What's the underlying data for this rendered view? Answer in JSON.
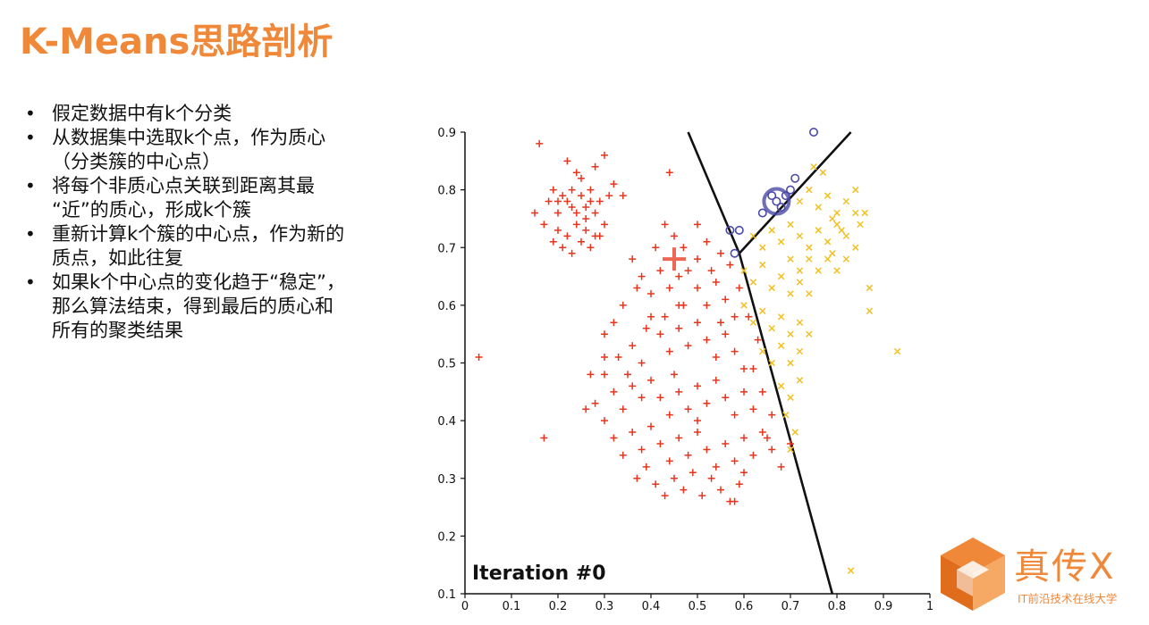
{
  "slide": {
    "title": "K-Means思路剖析",
    "bullets": [
      {
        "text": "假定数据中有k个分类"
      },
      {
        "text": "从数据集中选取k个点，作为质心（分类簇的中心点）"
      },
      {
        "text": "将每个非质心点关联到距离其最“近”的质心，形成k个簇"
      },
      {
        "text": "重新计算k个簇的中心点，作为新的质点，如此往复"
      },
      {
        "text": "如果k个中心点的变化趋于“稳定”，那么算法结束，得到最后的质心和所有的聚类结果"
      }
    ],
    "bullet_lines": [
      [
        "假定数据中有k个分类"
      ],
      [
        "从数据集中选取k个点，作为质心",
        "（分类簇的中心点）"
      ],
      [
        "将每个非质心点关联到距离其最",
        "“近”的质心，形成k个簇"
      ],
      [
        "重新计算k个簇的中心点，作为新的",
        "质点，如此往复"
      ],
      [
        "如果k个中心点的变化趋于“稳定”，",
        "那么算法结束，得到最后的质心和",
        "所有的聚类结果"
      ]
    ]
  },
  "logo": {
    "name": "真传X",
    "tagline": "IT前沿技术在线大学",
    "color": "#f0883a"
  },
  "chart_data": {
    "type": "scatter",
    "title": "",
    "annotation": "Iteration #0",
    "xlim": [
      0,
      1
    ],
    "ylim": [
      0.1,
      0.9
    ],
    "xticks": [
      "0",
      "0.1",
      "0.2",
      "0.3",
      "0.4",
      "0.5",
      "0.6",
      "0.7",
      "0.8",
      "0.9",
      "1"
    ],
    "yticks": [
      "0.1",
      "0.2",
      "0.3",
      "0.4",
      "0.5",
      "0.6",
      "0.7",
      "0.8",
      "0.9"
    ],
    "colors": {
      "red": "#e8341c",
      "yellow": "#f2c023",
      "blue": "#4a4aa8",
      "line": "#111111"
    },
    "boundaries": [
      {
        "x": [
          0.48,
          0.59,
          0.79
        ],
        "y": [
          0.9,
          0.69,
          0.1
        ]
      },
      {
        "x": [
          0.59,
          0.83
        ],
        "y": [
          0.69,
          0.9
        ]
      }
    ],
    "centroids": [
      {
        "cluster": "red",
        "x": 0.45,
        "y": 0.68
      },
      {
        "cluster": "blue",
        "x": 0.67,
        "y": 0.78
      }
    ],
    "clusters": [
      {
        "color": "red",
        "marker": "plus",
        "points": [
          [
            0.16,
            0.88
          ],
          [
            0.03,
            0.51
          ],
          [
            0.17,
            0.37
          ],
          [
            0.44,
            0.83
          ],
          [
            0.18,
            0.78
          ],
          [
            0.19,
            0.8
          ],
          [
            0.2,
            0.76
          ],
          [
            0.21,
            0.79
          ],
          [
            0.22,
            0.78
          ],
          [
            0.23,
            0.8
          ],
          [
            0.24,
            0.76
          ],
          [
            0.25,
            0.79
          ],
          [
            0.26,
            0.77
          ],
          [
            0.27,
            0.8
          ],
          [
            0.28,
            0.76
          ],
          [
            0.29,
            0.78
          ],
          [
            0.2,
            0.73
          ],
          [
            0.22,
            0.72
          ],
          [
            0.24,
            0.74
          ],
          [
            0.26,
            0.73
          ],
          [
            0.28,
            0.72
          ],
          [
            0.3,
            0.74
          ],
          [
            0.19,
            0.71
          ],
          [
            0.21,
            0.7
          ],
          [
            0.23,
            0.69
          ],
          [
            0.25,
            0.71
          ],
          [
            0.27,
            0.7
          ],
          [
            0.29,
            0.72
          ],
          [
            0.17,
            0.74
          ],
          [
            0.15,
            0.76
          ],
          [
            0.31,
            0.79
          ],
          [
            0.32,
            0.81
          ],
          [
            0.28,
            0.84
          ],
          [
            0.24,
            0.83
          ],
          [
            0.3,
            0.86
          ],
          [
            0.34,
            0.79
          ],
          [
            0.22,
            0.85
          ],
          [
            0.26,
            0.75
          ],
          [
            0.23,
            0.77
          ],
          [
            0.2,
            0.78
          ],
          [
            0.25,
            0.82
          ],
          [
            0.27,
            0.78
          ],
          [
            0.36,
            0.68
          ],
          [
            0.38,
            0.65
          ],
          [
            0.4,
            0.62
          ],
          [
            0.42,
            0.66
          ],
          [
            0.44,
            0.63
          ],
          [
            0.46,
            0.6
          ],
          [
            0.48,
            0.66
          ],
          [
            0.5,
            0.63
          ],
          [
            0.52,
            0.6
          ],
          [
            0.54,
            0.64
          ],
          [
            0.56,
            0.61
          ],
          [
            0.58,
            0.58
          ],
          [
            0.4,
            0.58
          ],
          [
            0.42,
            0.55
          ],
          [
            0.44,
            0.52
          ],
          [
            0.46,
            0.56
          ],
          [
            0.48,
            0.53
          ],
          [
            0.5,
            0.57
          ],
          [
            0.52,
            0.54
          ],
          [
            0.54,
            0.51
          ],
          [
            0.56,
            0.55
          ],
          [
            0.58,
            0.52
          ],
          [
            0.6,
            0.49
          ],
          [
            0.34,
            0.6
          ],
          [
            0.32,
            0.57
          ],
          [
            0.3,
            0.55
          ],
          [
            0.36,
            0.53
          ],
          [
            0.38,
            0.5
          ],
          [
            0.4,
            0.47
          ],
          [
            0.42,
            0.44
          ],
          [
            0.44,
            0.41
          ],
          [
            0.46,
            0.45
          ],
          [
            0.48,
            0.42
          ],
          [
            0.5,
            0.46
          ],
          [
            0.52,
            0.43
          ],
          [
            0.54,
            0.47
          ],
          [
            0.56,
            0.44
          ],
          [
            0.58,
            0.41
          ],
          [
            0.6,
            0.45
          ],
          [
            0.62,
            0.42
          ],
          [
            0.3,
            0.48
          ],
          [
            0.32,
            0.45
          ],
          [
            0.34,
            0.42
          ],
          [
            0.36,
            0.46
          ],
          [
            0.28,
            0.43
          ],
          [
            0.3,
            0.4
          ],
          [
            0.32,
            0.37
          ],
          [
            0.34,
            0.34
          ],
          [
            0.36,
            0.38
          ],
          [
            0.38,
            0.35
          ],
          [
            0.4,
            0.39
          ],
          [
            0.42,
            0.36
          ],
          [
            0.44,
            0.33
          ],
          [
            0.46,
            0.37
          ],
          [
            0.48,
            0.34
          ],
          [
            0.5,
            0.38
          ],
          [
            0.52,
            0.35
          ],
          [
            0.54,
            0.32
          ],
          [
            0.56,
            0.36
          ],
          [
            0.58,
            0.33
          ],
          [
            0.6,
            0.37
          ],
          [
            0.62,
            0.34
          ],
          [
            0.64,
            0.38
          ],
          [
            0.66,
            0.35
          ],
          [
            0.68,
            0.32
          ],
          [
            0.7,
            0.36
          ],
          [
            0.45,
            0.3
          ],
          [
            0.47,
            0.28
          ],
          [
            0.49,
            0.31
          ],
          [
            0.51,
            0.27
          ],
          [
            0.53,
            0.3
          ],
          [
            0.55,
            0.28
          ],
          [
            0.57,
            0.26
          ],
          [
            0.59,
            0.29
          ],
          [
            0.43,
            0.27
          ],
          [
            0.41,
            0.29
          ],
          [
            0.39,
            0.32
          ],
          [
            0.37,
            0.3
          ],
          [
            0.5,
            0.74
          ],
          [
            0.52,
            0.71
          ],
          [
            0.55,
            0.69
          ],
          [
            0.57,
            0.67
          ],
          [
            0.59,
            0.63
          ],
          [
            0.45,
            0.72
          ],
          [
            0.47,
            0.7
          ],
          [
            0.41,
            0.7
          ],
          [
            0.43,
            0.74
          ],
          [
            0.46,
            0.65
          ],
          [
            0.5,
            0.68
          ],
          [
            0.53,
            0.66
          ],
          [
            0.37,
            0.63
          ],
          [
            0.39,
            0.56
          ],
          [
            0.33,
            0.51
          ],
          [
            0.3,
            0.51
          ],
          [
            0.26,
            0.42
          ],
          [
            0.27,
            0.48
          ],
          [
            0.61,
            0.58
          ],
          [
            0.63,
            0.54
          ],
          [
            0.62,
            0.49
          ],
          [
            0.64,
            0.45
          ],
          [
            0.66,
            0.41
          ],
          [
            0.65,
            0.37
          ],
          [
            0.6,
            0.31
          ],
          [
            0.58,
            0.26
          ],
          [
            0.5,
            0.4
          ],
          [
            0.45,
            0.48
          ],
          [
            0.43,
            0.58
          ],
          [
            0.47,
            0.6
          ],
          [
            0.55,
            0.57
          ],
          [
            0.38,
            0.44
          ],
          [
            0.35,
            0.48
          ]
        ]
      },
      {
        "color": "yellow",
        "marker": "x",
        "points": [
          [
            0.62,
            0.72
          ],
          [
            0.64,
            0.7
          ],
          [
            0.66,
            0.73
          ],
          [
            0.68,
            0.71
          ],
          [
            0.7,
            0.74
          ],
          [
            0.72,
            0.72
          ],
          [
            0.74,
            0.7
          ],
          [
            0.76,
            0.73
          ],
          [
            0.78,
            0.71
          ],
          [
            0.8,
            0.74
          ],
          [
            0.82,
            0.72
          ],
          [
            0.84,
            0.7
          ],
          [
            0.72,
            0.78
          ],
          [
            0.74,
            0.8
          ],
          [
            0.76,
            0.77
          ],
          [
            0.78,
            0.79
          ],
          [
            0.8,
            0.76
          ],
          [
            0.82,
            0.78
          ],
          [
            0.84,
            0.8
          ],
          [
            0.86,
            0.76
          ],
          [
            0.7,
            0.68
          ],
          [
            0.72,
            0.66
          ],
          [
            0.74,
            0.68
          ],
          [
            0.76,
            0.66
          ],
          [
            0.78,
            0.68
          ],
          [
            0.8,
            0.66
          ],
          [
            0.82,
            0.68
          ],
          [
            0.6,
            0.66
          ],
          [
            0.62,
            0.64
          ],
          [
            0.64,
            0.67
          ],
          [
            0.66,
            0.63
          ],
          [
            0.68,
            0.65
          ],
          [
            0.7,
            0.62
          ],
          [
            0.72,
            0.64
          ],
          [
            0.74,
            0.62
          ],
          [
            0.6,
            0.6
          ],
          [
            0.62,
            0.57
          ],
          [
            0.64,
            0.59
          ],
          [
            0.66,
            0.56
          ],
          [
            0.68,
            0.58
          ],
          [
            0.7,
            0.55
          ],
          [
            0.72,
            0.57
          ],
          [
            0.74,
            0.55
          ],
          [
            0.64,
            0.52
          ],
          [
            0.66,
            0.5
          ],
          [
            0.68,
            0.53
          ],
          [
            0.7,
            0.5
          ],
          [
            0.72,
            0.52
          ],
          [
            0.68,
            0.46
          ],
          [
            0.7,
            0.44
          ],
          [
            0.72,
            0.47
          ],
          [
            0.69,
            0.41
          ],
          [
            0.71,
            0.38
          ],
          [
            0.7,
            0.35
          ],
          [
            0.87,
            0.63
          ],
          [
            0.87,
            0.59
          ],
          [
            0.93,
            0.52
          ],
          [
            0.83,
            0.14
          ],
          [
            0.75,
            0.84
          ],
          [
            0.85,
            0.74
          ],
          [
            0.84,
            0.76
          ],
          [
            0.79,
            0.75
          ],
          [
            0.77,
            0.83
          ],
          [
            0.81,
            0.73
          ],
          [
            0.79,
            0.69
          ]
        ]
      },
      {
        "color": "blue",
        "marker": "circle",
        "points": [
          [
            0.75,
            0.9
          ],
          [
            0.57,
            0.73
          ],
          [
            0.59,
            0.73
          ],
          [
            0.58,
            0.69
          ],
          [
            0.67,
            0.78
          ],
          [
            0.66,
            0.79
          ],
          [
            0.68,
            0.77
          ],
          [
            0.7,
            0.8
          ],
          [
            0.71,
            0.82
          ],
          [
            0.64,
            0.76
          ],
          [
            0.69,
            0.79
          ]
        ]
      }
    ]
  }
}
